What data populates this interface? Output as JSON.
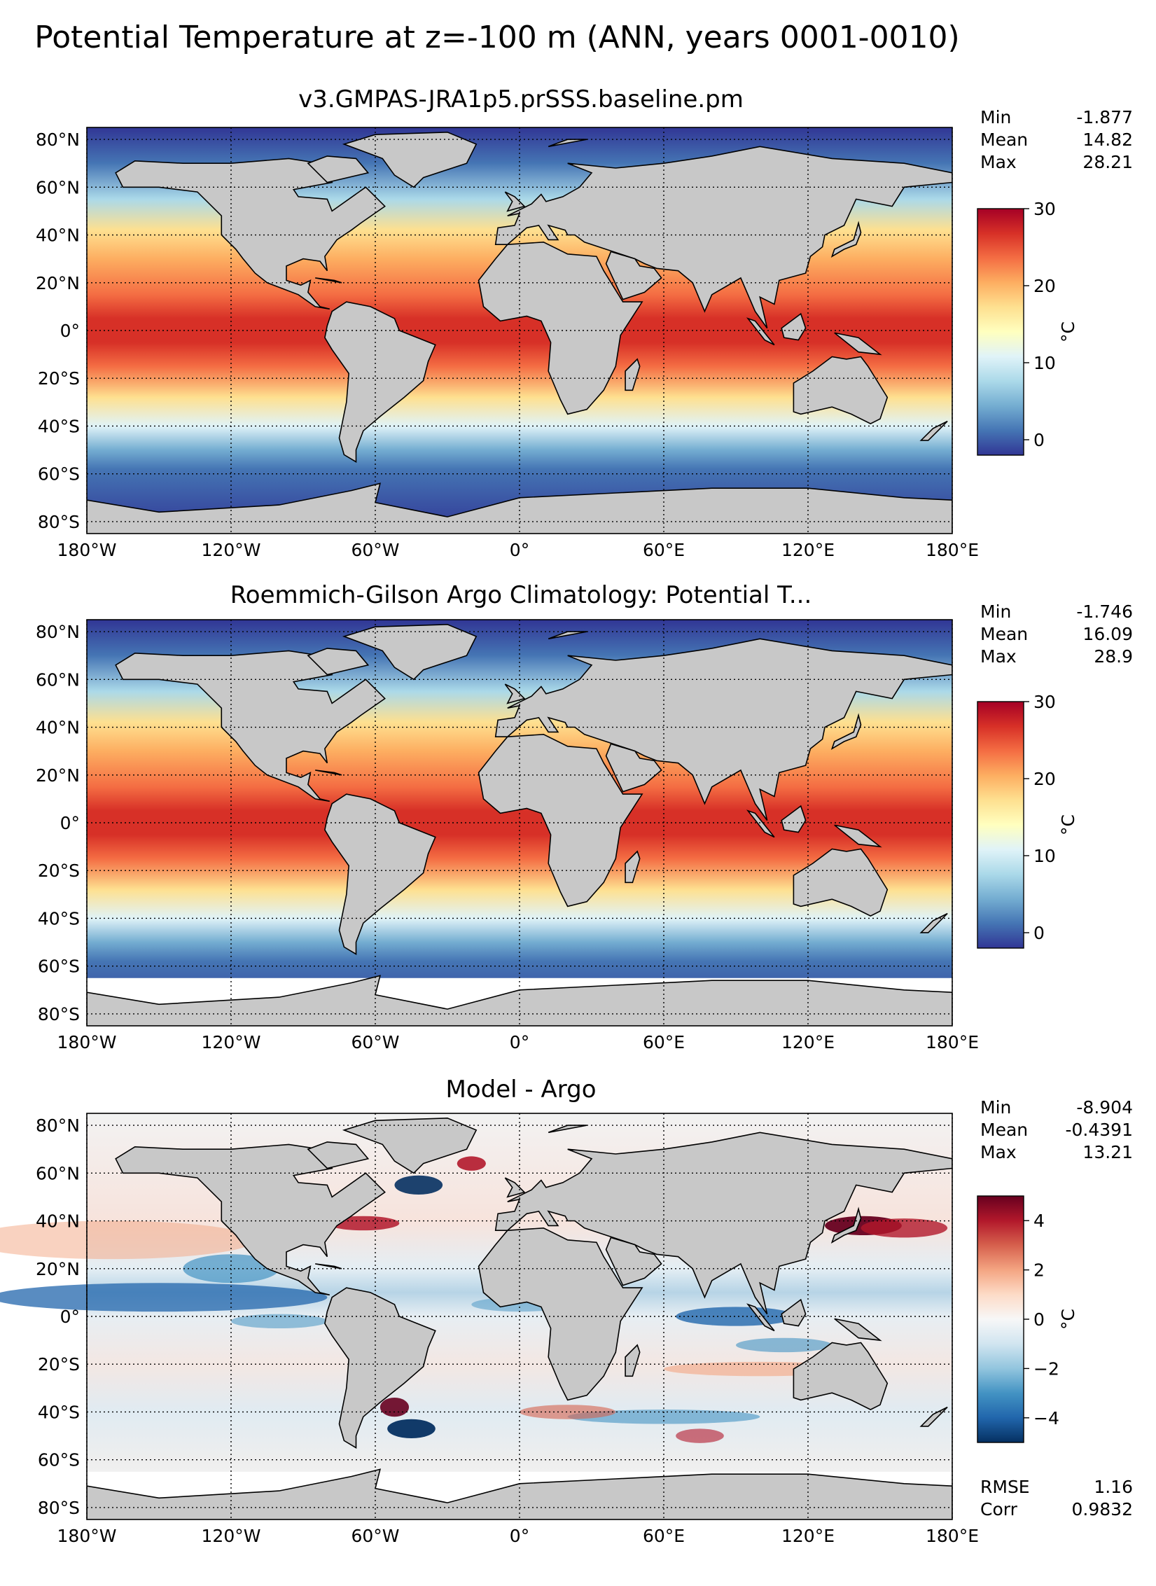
{
  "figure": {
    "title": "Potential Temperature at z=-100 m (ANN, years 0001-0010)"
  },
  "chart_data": [
    {
      "type": "heatmap",
      "title": "v3.GMPAS-JRA1p5.prSSS.baseline.pm",
      "xticks": [
        "180°W",
        "120°W",
        "60°W",
        "0°",
        "60°E",
        "120°E",
        "180°E"
      ],
      "yticks": [
        "80°N",
        "60°N",
        "40°N",
        "20°N",
        "0°",
        "20°S",
        "40°S",
        "60°S",
        "80°S"
      ],
      "xlim": [
        -180,
        180
      ],
      "ylim": [
        -85,
        85
      ],
      "stats": [
        {
          "label": "Min",
          "value": "-1.877"
        },
        {
          "label": "Mean",
          "value": "14.82"
        },
        {
          "label": "Max",
          "value": "28.21"
        }
      ],
      "colorbar": {
        "min": -2,
        "max": 30,
        "ticks": [
          "30",
          "20",
          "10",
          "0"
        ],
        "tick_values": [
          30,
          20,
          10,
          0
        ],
        "label": "°C",
        "cmap": "RdYlBu_r"
      }
    },
    {
      "type": "heatmap",
      "title": "Roemmich-Gilson Argo Climatology: Potential T...",
      "xticks": [
        "180°W",
        "120°W",
        "60°W",
        "0°",
        "60°E",
        "120°E",
        "180°E"
      ],
      "yticks": [
        "80°N",
        "60°N",
        "40°N",
        "20°N",
        "0°",
        "20°S",
        "40°S",
        "60°S",
        "80°S"
      ],
      "xlim": [
        -180,
        180
      ],
      "ylim": [
        -85,
        85
      ],
      "stats": [
        {
          "label": "Min",
          "value": "-1.746"
        },
        {
          "label": "Mean",
          "value": "16.09"
        },
        {
          "label": "Max",
          "value": "28.9"
        }
      ],
      "colorbar": {
        "min": -2,
        "max": 30,
        "ticks": [
          "30",
          "20",
          "10",
          "0"
        ],
        "tick_values": [
          30,
          20,
          10,
          0
        ],
        "label": "°C",
        "cmap": "RdYlBu_r"
      }
    },
    {
      "type": "heatmap",
      "title": "Model - Argo",
      "xticks": [
        "180°W",
        "120°W",
        "60°W",
        "0°",
        "60°E",
        "120°E",
        "180°E"
      ],
      "yticks": [
        "80°N",
        "60°N",
        "40°N",
        "20°N",
        "0°",
        "20°S",
        "40°S",
        "60°S",
        "80°S"
      ],
      "xlim": [
        -180,
        180
      ],
      "ylim": [
        -85,
        85
      ],
      "stats": [
        {
          "label": "Min",
          "value": "-8.904"
        },
        {
          "label": "Mean",
          "value": "-0.4391"
        },
        {
          "label": "Max",
          "value": "13.21"
        }
      ],
      "extra_stats": [
        {
          "label": "RMSE",
          "value": "1.16"
        },
        {
          "label": "Corr",
          "value": "0.9832"
        }
      ],
      "colorbar": {
        "min": -5,
        "max": 5,
        "ticks": [
          "4",
          "2",
          "0",
          "−2",
          "−4"
        ],
        "tick_values": [
          4,
          2,
          0,
          -2,
          -4
        ],
        "label": "°C",
        "cmap": "RdBu_r"
      }
    }
  ],
  "colors": {
    "land": "#c8c8c8",
    "coast": "#000000"
  }
}
